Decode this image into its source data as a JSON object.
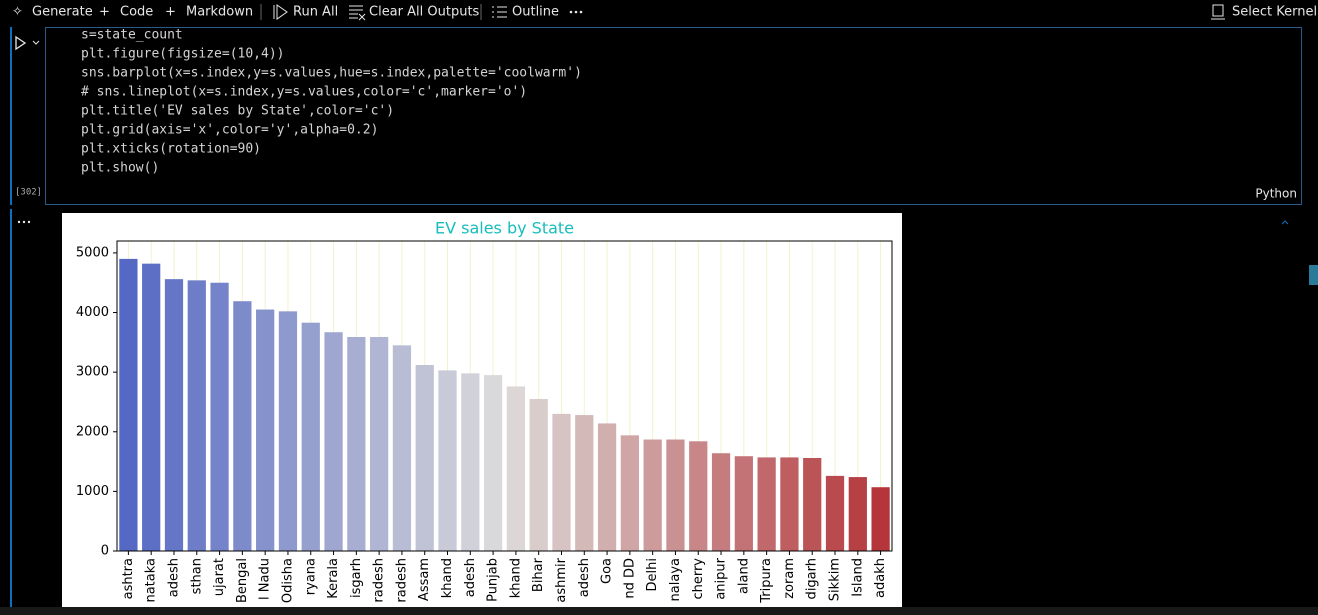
{
  "toolbar": {
    "items": [
      "Generate",
      "Code",
      "Markdown",
      "Run All",
      "Clear All Outputs",
      "Outline"
    ],
    "kernel": "Select Kernel"
  },
  "cell": {
    "code": [
      "s=state_count",
      "plt.figure(figsize=(10,4))",
      "sns.barplot(x=s.index,y=s.values,hue=s.index,palette='coolwarm')",
      "# sns.lineplot(x=s.index,y=s.values,color='c',marker='o')",
      "plt.title('EV sales by State',color='c')",
      "plt.grid(axis='x',color='y',alpha=0.2)",
      "plt.xticks(rotation=90)",
      "plt.show()"
    ],
    "execution_count": "[302]",
    "language": "Python"
  },
  "chart_data": {
    "type": "bar",
    "title": "EV sales by State",
    "title_color": "#17bebb",
    "categories": [
      "ashtra",
      "nataka",
      "adesh",
      "sthan",
      "ujarat",
      "Bengal",
      "l Nadu",
      "Odisha",
      "ryana",
      "Kerala",
      "isgarh",
      "radesh",
      "radesh",
      "Assam",
      "khand",
      "adesh",
      "Punjab",
      "khand",
      "Bihar",
      "ashmir",
      "adesh",
      "Goa",
      "nd DD",
      "Delhi",
      "nalaya",
      "cherry",
      "anipur",
      "aland",
      "Tripura",
      "zoram",
      "digarh",
      "Sikkim",
      "Island",
      "adakh"
    ],
    "values": [
      4900,
      4820,
      4560,
      4540,
      4500,
      4190,
      4050,
      4020,
      3830,
      3670,
      3590,
      3590,
      3450,
      3120,
      3030,
      2980,
      2950,
      2760,
      2550,
      2300,
      2280,
      2140,
      1940,
      1870,
      1870,
      1840,
      1640,
      1590,
      1570,
      1570,
      1560,
      1260,
      1240,
      1070
    ],
    "palette": [
      "#5468c4",
      "#dddcdb",
      "#b4363a"
    ],
    "ylim": [
      0,
      5200
    ],
    "yticks": [
      0,
      1000,
      2000,
      3000,
      4000,
      5000
    ],
    "grid": "x",
    "grid_color": "#f2f2cc"
  }
}
